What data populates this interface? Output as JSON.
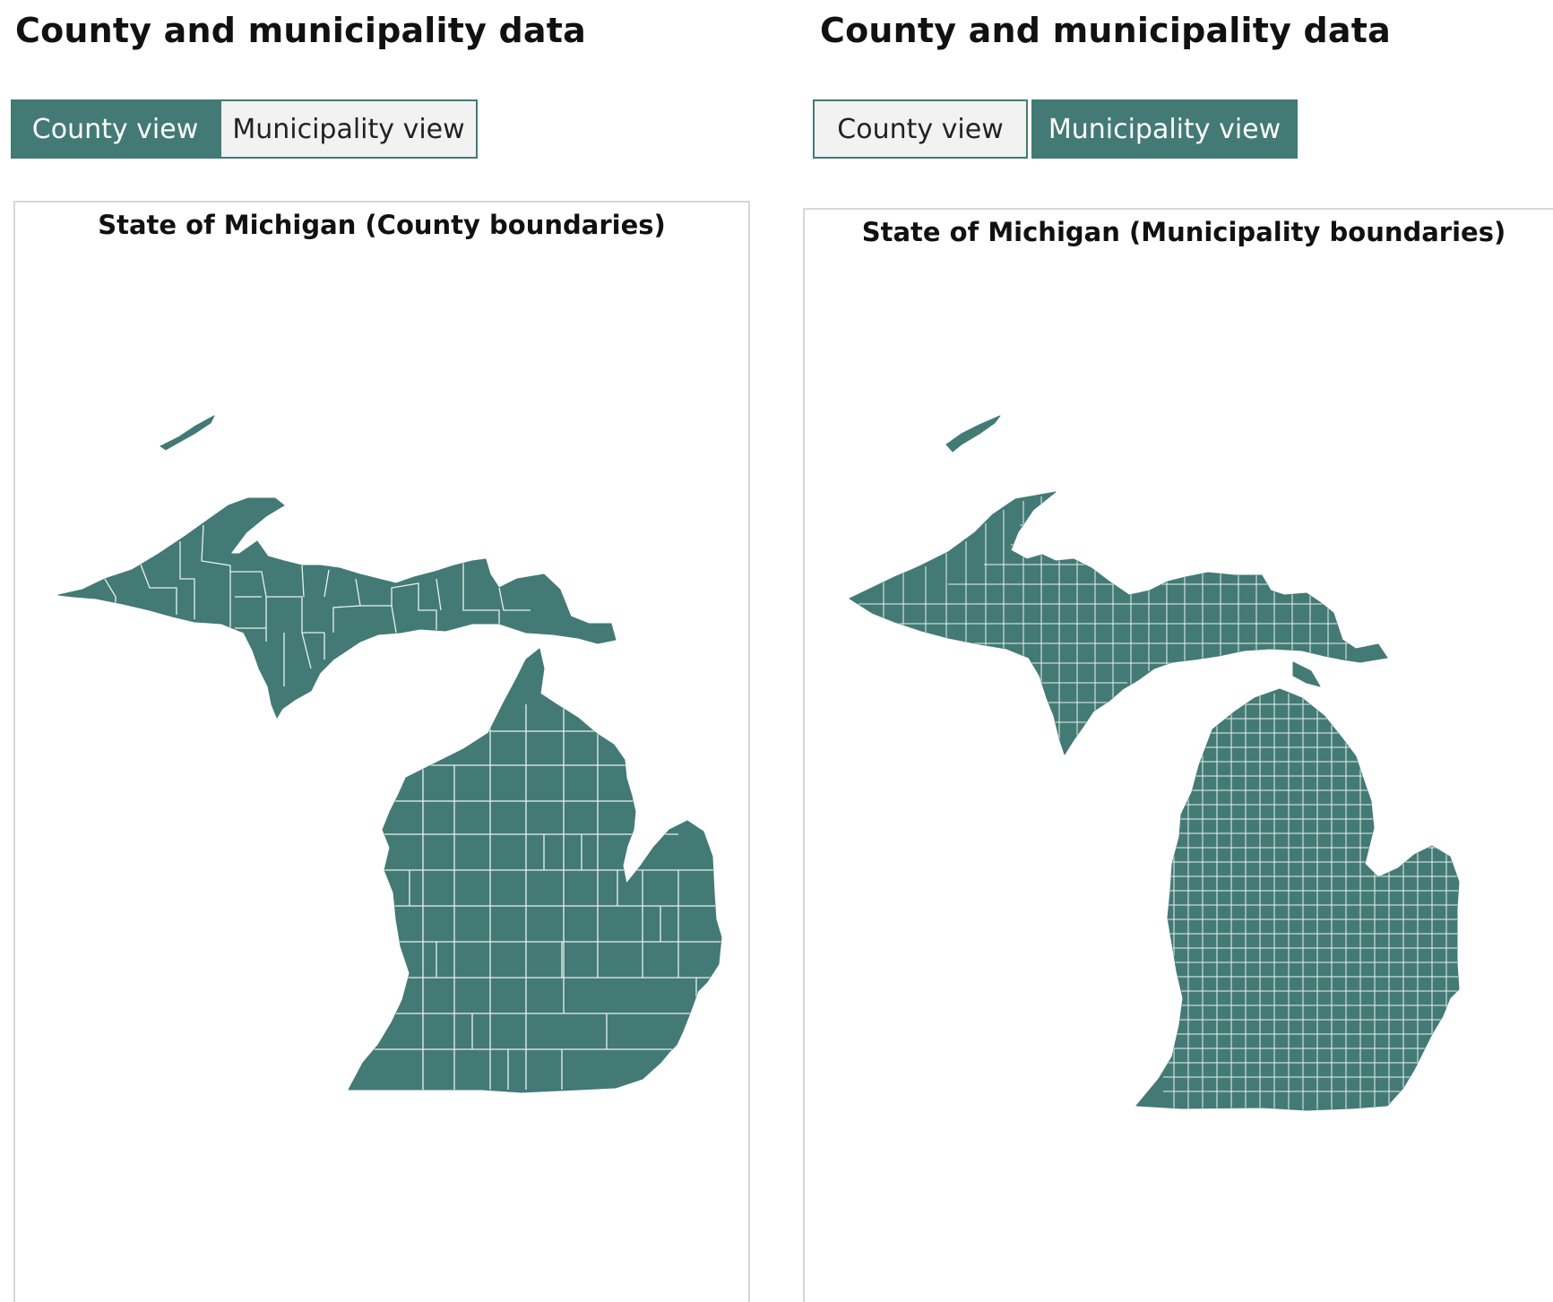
{
  "panels": [
    {
      "page_title": "County and municipality data",
      "tabs": [
        {
          "label": "County view",
          "active": true
        },
        {
          "label": "Municipality view",
          "active": false
        }
      ],
      "map_title": "State of Michigan (County boundaries)"
    },
    {
      "page_title": "County and municipality data",
      "tabs": [
        {
          "label": "County view",
          "active": false
        },
        {
          "label": "Municipality view",
          "active": true
        }
      ],
      "map_title": "State of Michigan (Municipality boundaries)"
    }
  ],
  "colors": {
    "accent": "#437a75",
    "inactive_button_bg": "#f2f2f2",
    "boundary_lines": "#e9f1ef",
    "frame_border": "#d6d6d6"
  }
}
